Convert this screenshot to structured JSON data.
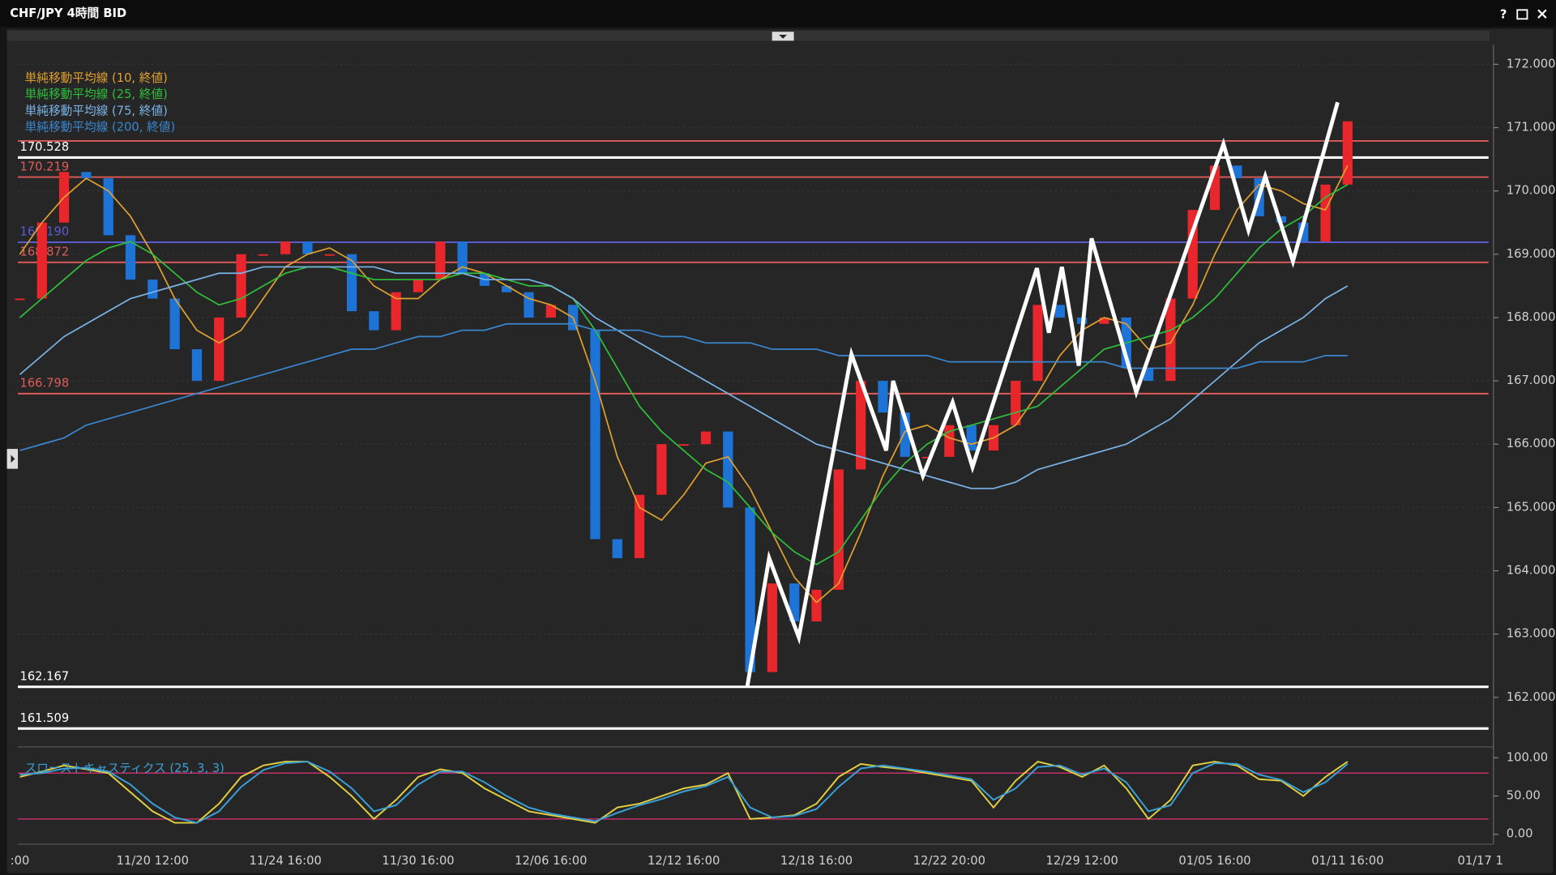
{
  "window": {
    "title": "CHF/JPY 4時間 BID",
    "help": "?"
  },
  "chart_data": [
    {
      "type": "candlestick",
      "categories": [
        ":00",
        null,
        null,
        null,
        null,
        null,
        "11/20 12:00",
        null,
        null,
        null,
        null,
        null,
        "11/24 16:00",
        null,
        null,
        null,
        null,
        null,
        "11/30 16:00",
        null,
        null,
        null,
        null,
        null,
        "12/06 16:00",
        null,
        null,
        null,
        null,
        null,
        "12/12 16:00",
        null,
        null,
        null,
        null,
        null,
        "12/18 16:00",
        null,
        null,
        null,
        null,
        null,
        "12/22 20:00",
        null,
        null,
        null,
        null,
        null,
        "12/29 12:00",
        null,
        null,
        null,
        null,
        null,
        "01/05 16:00",
        null,
        null,
        null,
        null,
        null,
        "01/11 16:00",
        null,
        null,
        null,
        null,
        null,
        "01/17 1"
      ],
      "values": [
        168.3,
        169.5,
        170.3,
        170.2,
        169.3,
        168.6,
        168.3,
        167.5,
        167.0,
        168.0,
        169.0,
        169.0,
        169.2,
        169.0,
        169.0,
        168.1,
        167.8,
        168.4,
        168.6,
        169.2,
        168.7,
        168.5,
        168.4,
        168.0,
        168.2,
        167.8,
        164.5,
        164.2,
        165.2,
        166.0,
        166.0,
        166.2,
        165.0,
        162.4,
        163.8,
        163.2,
        163.7,
        165.6,
        167.0,
        166.5,
        165.8,
        165.8,
        166.3,
        165.9,
        166.3,
        167.0,
        168.2,
        168.0,
        167.9,
        168.0,
        167.2,
        167.0,
        168.3,
        169.7,
        170.4,
        170.2,
        169.6,
        169.5,
        169.2,
        170.1,
        171.1,
        null,
        null,
        null,
        null,
        null,
        null
      ],
      "up_color": "#e8262b",
      "down_color": "#1e74d6",
      "ylim": [
        161.25,
        172.31
      ],
      "yticks": [
        {
          "value": 162,
          "label": "162.000"
        },
        {
          "value": 163,
          "label": "163.000"
        },
        {
          "value": 164,
          "label": "164.000"
        },
        {
          "value": 165,
          "label": "165.000"
        },
        {
          "value": 166,
          "label": "166.000"
        },
        {
          "value": 167,
          "label": "167.000"
        },
        {
          "value": 168,
          "label": "168.000"
        },
        {
          "value": 169,
          "label": "169.000"
        },
        {
          "value": 170,
          "label": "170.000"
        },
        {
          "value": 171,
          "label": "171.000"
        },
        {
          "value": 172,
          "label": "172.000"
        }
      ],
      "grid": true,
      "series": [
        {
          "name": "単純移動平均線 (10, 終値)",
          "color": "#e0a030",
          "values": [
            169.0,
            169.5,
            169.9,
            170.2,
            170.0,
            169.6,
            169.0,
            168.3,
            167.8,
            167.6,
            167.8,
            168.3,
            168.8,
            169.0,
            169.1,
            168.9,
            168.5,
            168.3,
            168.3,
            168.6,
            168.8,
            168.7,
            168.5,
            168.3,
            168.2,
            168.0,
            167.0,
            165.8,
            165.0,
            164.8,
            165.2,
            165.7,
            165.8,
            165.3,
            164.6,
            163.9,
            163.5,
            163.8,
            164.6,
            165.5,
            166.2,
            166.3,
            166.1,
            166.0,
            166.1,
            166.3,
            166.8,
            167.4,
            167.8,
            168.0,
            167.9,
            167.5,
            167.6,
            168.2,
            169.0,
            169.7,
            170.1,
            170.0,
            169.8,
            169.7,
            170.4,
            null,
            null,
            null,
            null,
            null,
            null
          ]
        },
        {
          "name": "単純移動平均線 (25, 終値)",
          "color": "#2fbf3a",
          "values": [
            168.0,
            168.3,
            168.6,
            168.9,
            169.1,
            169.2,
            169.0,
            168.7,
            168.4,
            168.2,
            168.3,
            168.5,
            168.7,
            168.8,
            168.8,
            168.7,
            168.6,
            168.6,
            168.6,
            168.6,
            168.7,
            168.7,
            168.6,
            168.5,
            168.5,
            168.3,
            167.8,
            167.2,
            166.6,
            166.2,
            165.9,
            165.6,
            165.4,
            165.0,
            164.6,
            164.3,
            164.1,
            164.3,
            164.8,
            165.3,
            165.7,
            166.0,
            166.2,
            166.3,
            166.4,
            166.5,
            166.6,
            166.9,
            167.2,
            167.5,
            167.6,
            167.7,
            167.8,
            168.0,
            168.3,
            168.7,
            169.1,
            169.4,
            169.6,
            169.9,
            170.1,
            null,
            null,
            null,
            null,
            null,
            null
          ]
        },
        {
          "name": "単純移動平均線 (75, 終値)",
          "color": "#7ab4e8",
          "values": [
            167.1,
            167.4,
            167.7,
            167.9,
            168.1,
            168.3,
            168.4,
            168.5,
            168.6,
            168.7,
            168.7,
            168.8,
            168.8,
            168.8,
            168.8,
            168.8,
            168.8,
            168.7,
            168.7,
            168.7,
            168.7,
            168.6,
            168.6,
            168.6,
            168.5,
            168.3,
            168.0,
            167.8,
            167.6,
            167.4,
            167.2,
            167.0,
            166.8,
            166.6,
            166.4,
            166.2,
            166.0,
            165.9,
            165.8,
            165.7,
            165.6,
            165.5,
            165.4,
            165.3,
            165.3,
            165.4,
            165.6,
            165.7,
            165.8,
            165.9,
            166.0,
            166.2,
            166.4,
            166.7,
            167.0,
            167.3,
            167.6,
            167.8,
            168.0,
            168.3,
            168.5,
            null,
            null,
            null,
            null,
            null,
            null
          ]
        },
        {
          "name": "単純移動平均線 (200, 終値)",
          "color": "#3a86d0",
          "values": [
            165.9,
            166.0,
            166.1,
            166.3,
            166.4,
            166.5,
            166.6,
            166.7,
            166.8,
            166.9,
            167.0,
            167.1,
            167.2,
            167.3,
            167.4,
            167.5,
            167.5,
            167.6,
            167.7,
            167.7,
            167.8,
            167.8,
            167.9,
            167.9,
            167.9,
            167.9,
            167.8,
            167.8,
            167.8,
            167.7,
            167.7,
            167.6,
            167.6,
            167.6,
            167.5,
            167.5,
            167.5,
            167.4,
            167.4,
            167.4,
            167.4,
            167.4,
            167.3,
            167.3,
            167.3,
            167.3,
            167.3,
            167.3,
            167.3,
            167.3,
            167.2,
            167.2,
            167.2,
            167.2,
            167.2,
            167.2,
            167.3,
            167.3,
            167.3,
            167.4,
            167.4,
            null,
            null,
            null,
            null,
            null,
            null
          ]
        }
      ],
      "levels": [
        {
          "value": 170.79,
          "color": "#e05a5a"
        },
        {
          "value": 170.528,
          "label": "170.528",
          "color": "#ffffff"
        },
        {
          "value": 170.219,
          "label": "170.219",
          "color": "#e05a5a"
        },
        {
          "value": 169.19,
          "label": "169.190",
          "color": "#5a5ad0"
        },
        {
          "value": 168.872,
          "label": "168.872",
          "color": "#e05a5a"
        },
        {
          "value": 166.798,
          "label": "166.798",
          "color": "#e05a5a"
        },
        {
          "value": 162.167,
          "label": "162.167",
          "color": "#ffffff"
        },
        {
          "value": 161.509,
          "label": "161.509",
          "color": "#ffffff"
        }
      ],
      "zigzag": {
        "color": "#ffffff",
        "x": [
          32.87,
          33.86,
          35.2,
          37.58,
          39.15,
          39.46,
          40.81,
          42.15,
          43.05,
          45.96,
          46.5,
          47.09,
          47.85,
          48.43,
          50.45,
          54.39,
          55.52,
          56.28,
          57.53,
          59.55
        ],
        "values": [
          162.167,
          164.2,
          162.95,
          167.42,
          165.9,
          167.0,
          165.5,
          166.66,
          165.64,
          168.78,
          167.76,
          168.8,
          167.24,
          169.25,
          166.82,
          170.74,
          169.38,
          170.23,
          168.89,
          171.4
        ]
      }
    },
    {
      "type": "line",
      "title": "スローストキャスティクス (25, 3, 3)",
      "ylim": [
        -10.4,
        110.4
      ],
      "yticks": [
        {
          "value": 100,
          "label": "100.00"
        },
        {
          "value": 50,
          "label": "50.00"
        },
        {
          "value": 0,
          "label": "0.00"
        }
      ],
      "hlines": [
        80,
        20
      ],
      "hline_color": "#c0306a",
      "series": [
        {
          "color": "#e0d040",
          "values": [
            75,
            82,
            90,
            85,
            80,
            55,
            30,
            15,
            15,
            40,
            75,
            90,
            95,
            95,
            75,
            50,
            20,
            45,
            75,
            85,
            80,
            60,
            45,
            30,
            25,
            20,
            15,
            35,
            40,
            50,
            60,
            65,
            80,
            20,
            22,
            25,
            40,
            75,
            92,
            88,
            85,
            80,
            75,
            70,
            35,
            70,
            95,
            88,
            75,
            90,
            60,
            20,
            45,
            90,
            95,
            90,
            72,
            70,
            50,
            75,
            95,
            null,
            null,
            null,
            null,
            null,
            null
          ]
        },
        {
          "color": "#3aa0d8",
          "values": [
            78,
            80,
            86,
            87,
            82,
            65,
            40,
            22,
            15,
            30,
            62,
            84,
            93,
            95,
            82,
            60,
            30,
            38,
            65,
            82,
            82,
            68,
            50,
            35,
            27,
            22,
            17,
            28,
            38,
            46,
            56,
            63,
            75,
            35,
            22,
            24,
            33,
            62,
            86,
            90,
            86,
            82,
            77,
            72,
            45,
            60,
            88,
            90,
            78,
            86,
            68,
            30,
            38,
            80,
            93,
            92,
            78,
            71,
            55,
            68,
            92,
            null,
            null,
            null,
            null,
            null,
            null
          ]
        }
      ]
    }
  ]
}
